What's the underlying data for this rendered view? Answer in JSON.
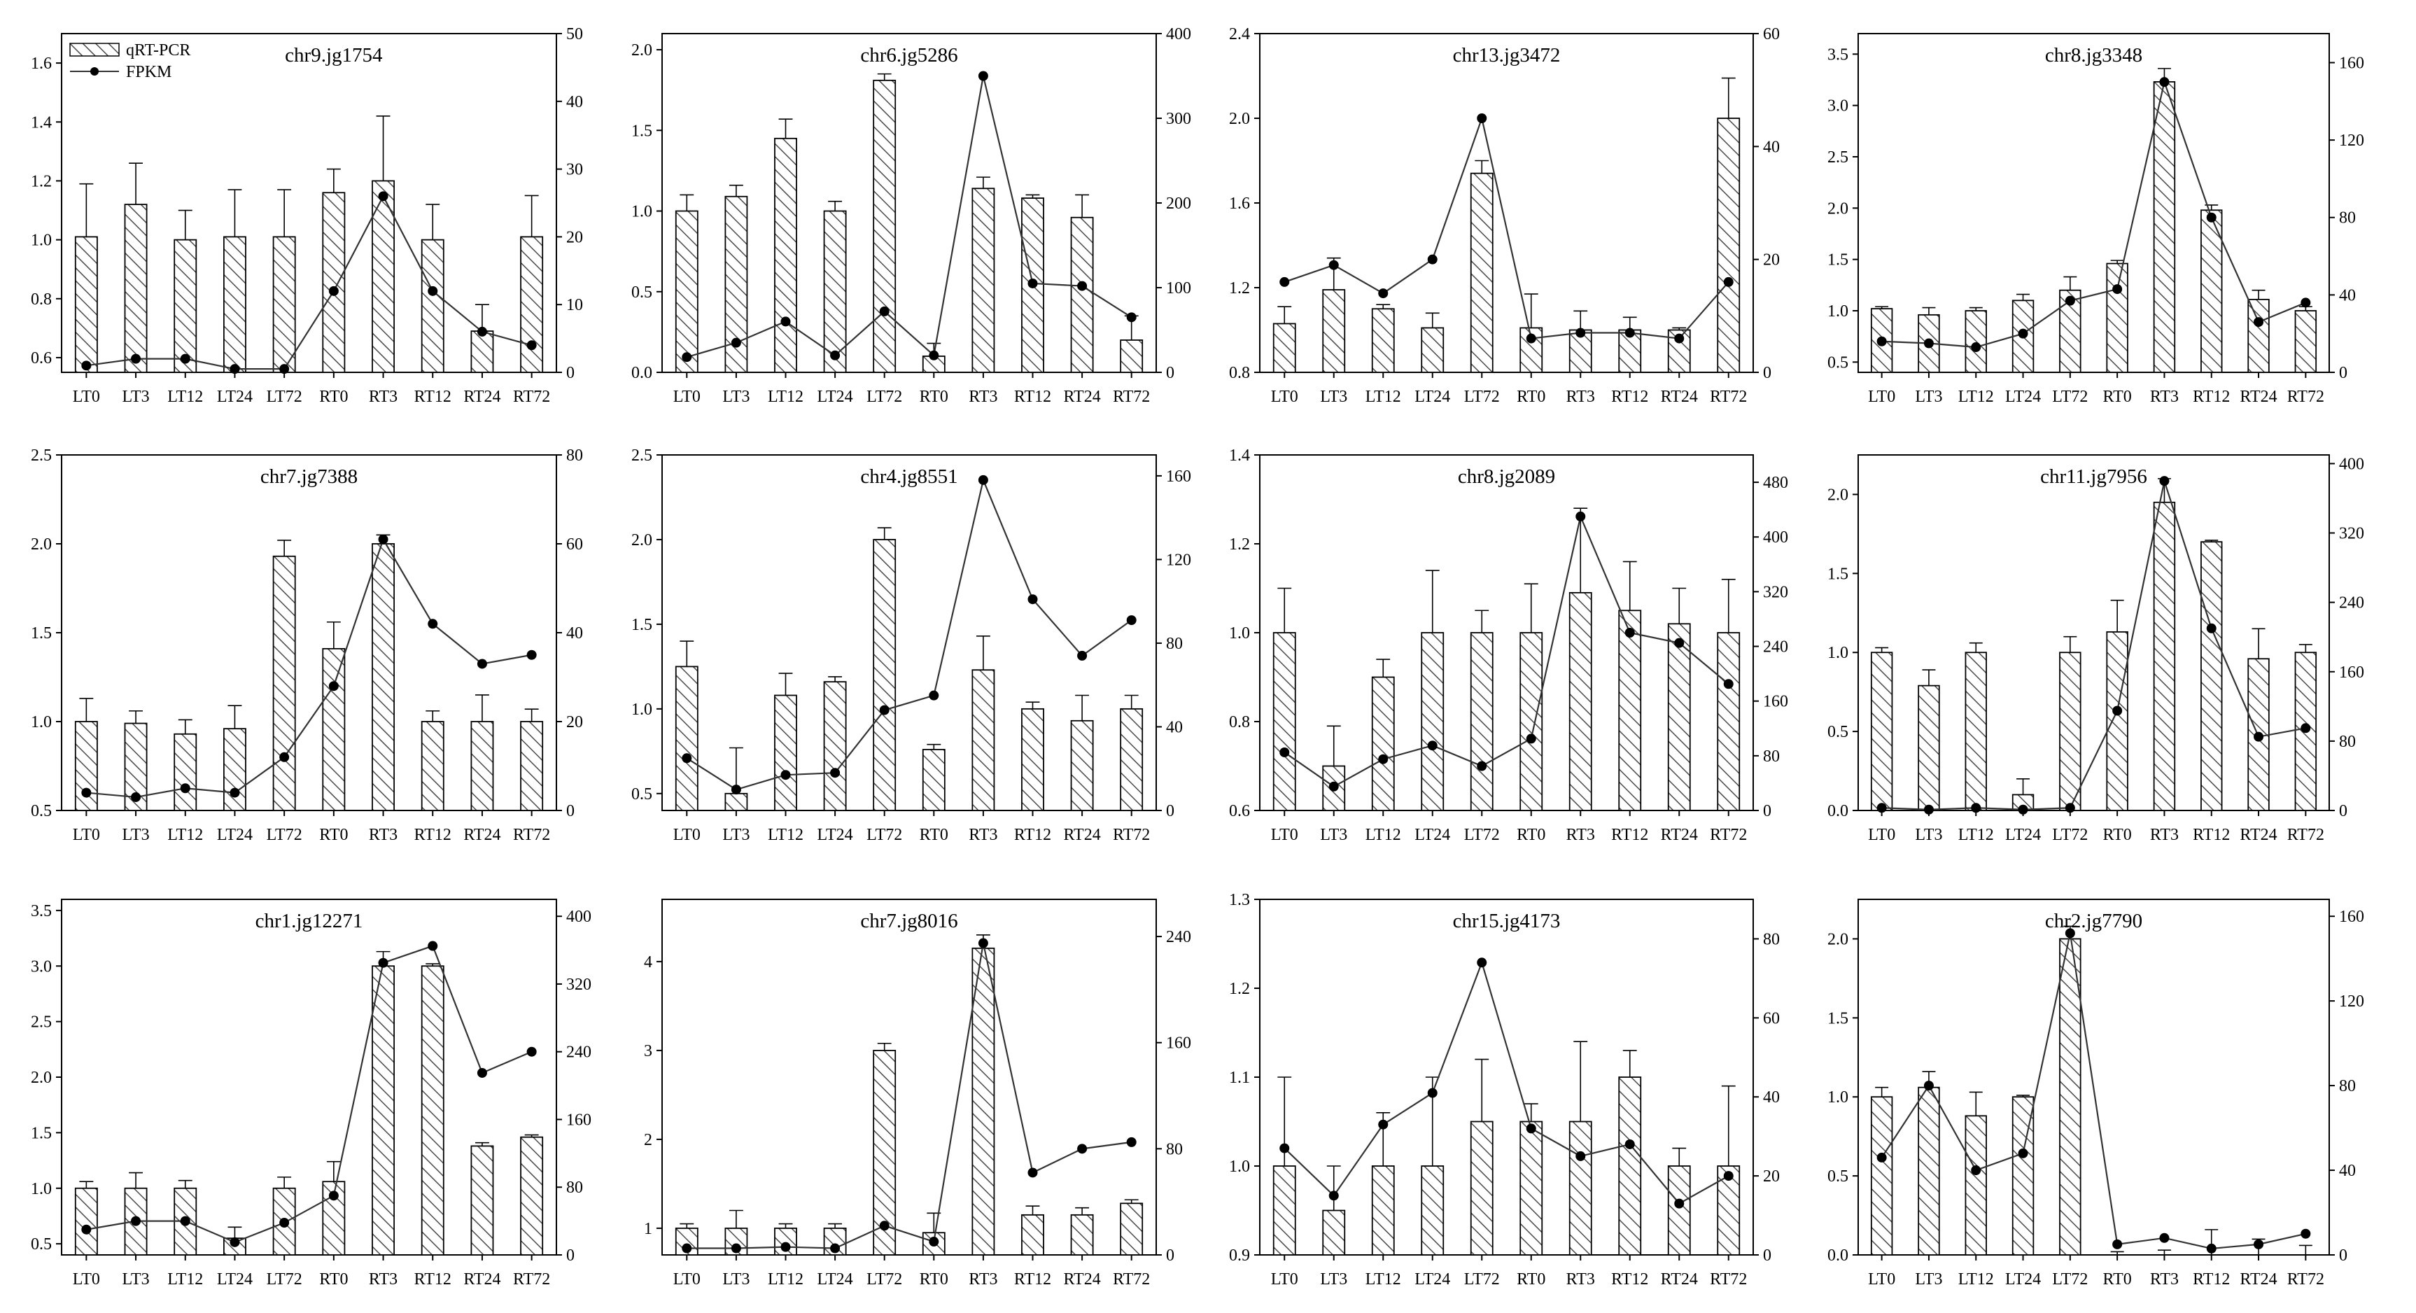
{
  "legend": {
    "bar_label": "qRT-PCR",
    "line_label": "FPKM"
  },
  "colors": {
    "ink": "#000000",
    "bar_fill": "#ffffff",
    "hatch": "#4a4a4a"
  },
  "chart_data": [
    {
      "type": "bar+line",
      "title": "chr9.jg1754",
      "categories": [
        "LT0",
        "LT3",
        "LT12",
        "LT24",
        "LT72",
        "RT0",
        "RT3",
        "RT12",
        "RT24",
        "RT72"
      ],
      "category_labels": [
        "LT0",
        "LT3",
        "LT12",
        "LT24",
        "LT72",
        "RT0",
        "RT3",
        "RT12",
        "RT24",
        "RT72"
      ],
      "bar_values": [
        1.01,
        1.12,
        1.0,
        1.01,
        1.01,
        1.16,
        1.2,
        1.0,
        0.69,
        1.01
      ],
      "bar_errors": [
        0.18,
        0.14,
        0.1,
        0.16,
        0.16,
        0.08,
        0.22,
        0.12,
        0.09,
        0.14
      ],
      "fpkm_values": [
        1,
        2,
        2,
        0.5,
        0.5,
        12,
        26,
        12,
        6,
        4
      ],
      "ylim_left": [
        0.55,
        1.7
      ],
      "yticks_left": [
        "0.6",
        "0.8",
        "1.0",
        "1.2",
        "1.4",
        "1.6"
      ],
      "ylim_right": [
        0,
        50
      ],
      "yticks_right": [
        "0",
        "10",
        "20",
        "30",
        "40",
        "50"
      ]
    },
    {
      "type": "bar+line",
      "title": "chr6.jg5286",
      "categories": [
        "LT0",
        "LT3",
        "LT12",
        "LT24",
        "LT72",
        "RT0",
        "RT3",
        "RT12",
        "RT24",
        "RT72"
      ],
      "category_labels": [
        "LT0",
        "LT3",
        "LT12",
        "LT24",
        "LT72",
        "RT0",
        "RT3",
        "RT12",
        "RT24",
        "RT72"
      ],
      "bar_values": [
        1.0,
        1.09,
        1.45,
        1.0,
        1.81,
        0.1,
        1.14,
        1.08,
        0.96,
        0.2
      ],
      "bar_errors": [
        0.1,
        0.07,
        0.12,
        0.06,
        0.04,
        0.08,
        0.07,
        0.02,
        0.14,
        0.15
      ],
      "fpkm_values": [
        18,
        35,
        60,
        20,
        72,
        20,
        350,
        105,
        102,
        65
      ],
      "ylim_left": [
        0,
        2.1
      ],
      "yticks_left": [
        "0.0",
        "0.5",
        "1.0",
        "1.5",
        "2.0"
      ],
      "ylim_right": [
        0,
        400
      ],
      "yticks_right": [
        "0",
        "100",
        "200",
        "300",
        "400"
      ]
    },
    {
      "type": "bar+line",
      "title": "chr13.jg3472",
      "categories": [
        "LT0",
        "LT3",
        "LT12",
        "LT24",
        "LT72",
        "RT0",
        "RT3",
        "RT12",
        "RT24",
        "RT72"
      ],
      "category_labels": [
        "LT0",
        "LT3",
        "LT12",
        "LT24",
        "LT72",
        "RT0",
        "RT3",
        "RT12",
        "RT24",
        "RT72"
      ],
      "bar_values": [
        1.03,
        1.19,
        1.1,
        1.01,
        1.74,
        1.01,
        1.0,
        1.0,
        1.0,
        2.0
      ],
      "bar_errors": [
        0.08,
        0.15,
        0.02,
        0.07,
        0.06,
        0.16,
        0.09,
        0.06,
        0.01,
        0.19
      ],
      "fpkm_values": [
        16,
        19,
        14,
        20,
        45,
        6,
        7,
        7,
        6,
        16
      ],
      "ylim_left": [
        0.8,
        2.4
      ],
      "yticks_left": [
        "0.8",
        "1.2",
        "1.6",
        "2.0",
        "2.4"
      ],
      "ylim_right": [
        0,
        60
      ],
      "yticks_right": [
        "0",
        "20",
        "40",
        "60"
      ]
    },
    {
      "type": "bar+line",
      "title": "chr8.jg3348",
      "categories": [
        "LT0",
        "LT3",
        "LT12",
        "LT24",
        "LT72",
        "RT0",
        "RT3",
        "RT12",
        "RT24",
        "RT72"
      ],
      "category_labels": [
        "LT0",
        "LT3",
        "LT12",
        "LT24",
        "LT72",
        "RT0",
        "RT3",
        "RT12",
        "RT24",
        "RT72"
      ],
      "bar_values": [
        1.02,
        0.96,
        1.0,
        1.1,
        1.2,
        1.46,
        3.23,
        1.98,
        1.11,
        1.0
      ],
      "bar_errors": [
        0.02,
        0.07,
        0.03,
        0.06,
        0.13,
        0.03,
        0.13,
        0.05,
        0.09,
        0.04
      ],
      "fpkm_values": [
        16,
        15,
        13,
        20,
        37,
        43,
        150,
        80,
        26,
        36
      ],
      "ylim_left": [
        0.4,
        3.7
      ],
      "yticks_left": [
        "0.5",
        "1.0",
        "1.5",
        "2.0",
        "2.5",
        "3.0",
        "3.5"
      ],
      "ylim_right": [
        0,
        175
      ],
      "yticks_right": [
        "0",
        "40",
        "80",
        "120",
        "160"
      ]
    },
    {
      "type": "bar+line",
      "title": "chr7.jg7388",
      "categories": [
        "LT0",
        "LT3",
        "LT12",
        "LT24",
        "LT72",
        "RT0",
        "RT3",
        "RT12",
        "RT24",
        "RT72"
      ],
      "category_labels": [
        "LT0",
        "LT3",
        "LT12",
        "LT24",
        "LT72",
        "RT0",
        "RT3",
        "RT12",
        "RT24",
        "RT72"
      ],
      "bar_values": [
        1.0,
        0.99,
        0.93,
        0.96,
        1.93,
        1.41,
        2.0,
        1.0,
        1.0,
        1.0
      ],
      "bar_errors": [
        0.13,
        0.07,
        0.08,
        0.13,
        0.09,
        0.15,
        0.05,
        0.06,
        0.15,
        0.07
      ],
      "fpkm_values": [
        4,
        3,
        5,
        4,
        12,
        28,
        61,
        42,
        33,
        35
      ],
      "ylim_left": [
        0.5,
        2.5
      ],
      "yticks_left": [
        "0.5",
        "1.0",
        "1.5",
        "2.0",
        "2.5"
      ],
      "ylim_right": [
        0,
        80
      ],
      "yticks_right": [
        "0",
        "20",
        "40",
        "60",
        "80"
      ]
    },
    {
      "type": "bar+line",
      "title": "chr4.jg8551",
      "categories": [
        "LT0",
        "LT3",
        "LT12",
        "LT24",
        "LT72",
        "RT0",
        "RT3",
        "RT12",
        "RT24",
        "RT72"
      ],
      "category_labels": [
        "LT0",
        "LT3",
        "LT12",
        "LT24",
        "LT72",
        "RT0",
        "RT3",
        "RT12",
        "RT24",
        "RT72"
      ],
      "bar_values": [
        1.25,
        0.5,
        1.08,
        1.16,
        2.0,
        0.76,
        1.23,
        1.0,
        0.93,
        1.0
      ],
      "bar_errors": [
        0.15,
        0.27,
        0.13,
        0.03,
        0.07,
        0.03,
        0.2,
        0.04,
        0.15,
        0.08
      ],
      "fpkm_values": [
        25,
        10,
        17,
        18,
        48,
        55,
        158,
        101,
        74,
        91
      ],
      "ylim_left": [
        0.4,
        2.5
      ],
      "yticks_left": [
        "0.5",
        "1.0",
        "1.5",
        "2.0",
        "2.5"
      ],
      "ylim_right": [
        0,
        170
      ],
      "yticks_right": [
        "0",
        "40",
        "80",
        "120",
        "160"
      ]
    },
    {
      "type": "bar+line",
      "title": "chr8.jg2089",
      "categories": [
        "LT0",
        "LT3",
        "LT12",
        "LT24",
        "LT72",
        "RT0",
        "RT3",
        "RT12",
        "RT24",
        "RT72"
      ],
      "category_labels": [
        "LT0",
        "LT3",
        "LT12",
        "LT24",
        "LT72",
        "RT0",
        "RT3",
        "RT12",
        "RT24",
        "RT72"
      ],
      "bar_values": [
        1.0,
        0.7,
        0.9,
        1.0,
        1.0,
        1.0,
        1.09,
        1.05,
        1.02,
        1.0
      ],
      "bar_errors": [
        0.1,
        0.09,
        0.04,
        0.14,
        0.05,
        0.11,
        0.19,
        0.11,
        0.08,
        0.12
      ],
      "fpkm_values": [
        85,
        35,
        75,
        95,
        65,
        105,
        430,
        260,
        245,
        185
      ],
      "ylim_left": [
        0.6,
        1.4
      ],
      "yticks_left": [
        "0.6",
        "0.8",
        "1.0",
        "1.2",
        "1.4"
      ],
      "ylim_right": [
        0,
        520
      ],
      "yticks_right": [
        "0",
        "80",
        "160",
        "240",
        "320",
        "400",
        "480"
      ]
    },
    {
      "type": "bar+line",
      "title": "chr11.jg7956",
      "categories": [
        "LT0",
        "LT3",
        "LT12",
        "LT24",
        "LT72",
        "RT0",
        "RT3",
        "RT12",
        "RT24",
        "RT72"
      ],
      "category_labels": [
        "LT0",
        "LT3",
        "LT12",
        "LT24",
        "LT72",
        "RT0",
        "RT3",
        "RT12",
        "RT24",
        "RT72"
      ],
      "bar_values": [
        1.0,
        0.79,
        1.0,
        0.1,
        1.0,
        1.13,
        1.95,
        1.7,
        0.96,
        1.0
      ],
      "bar_errors": [
        0.03,
        0.1,
        0.06,
        0.1,
        0.1,
        0.2,
        0.15,
        0.01,
        0.19,
        0.05
      ],
      "fpkm_values": [
        3,
        1,
        3,
        1,
        3,
        115,
        380,
        210,
        85,
        95
      ],
      "ylim_left": [
        0,
        2.25
      ],
      "yticks_left": [
        "0.0",
        "0.5",
        "1.0",
        "1.5",
        "2.0"
      ],
      "ylim_right": [
        0,
        410
      ],
      "yticks_right": [
        "0",
        "80",
        "160",
        "240",
        "320",
        "400"
      ]
    },
    {
      "type": "bar+line",
      "title": "chr1.jg12271",
      "categories": [
        "LT0",
        "LT3",
        "LT12",
        "LT24",
        "LT72",
        "RT0",
        "RT3",
        "RT12",
        "RT24",
        "RT72"
      ],
      "category_labels": [
        "LT0",
        "LT3",
        "LT12",
        "LT24",
        "LT72",
        "RT0",
        "RT3",
        "RT12",
        "RT24",
        "RT72"
      ],
      "bar_values": [
        1.0,
        1.0,
        1.0,
        0.55,
        1.0,
        1.06,
        3.0,
        3.0,
        1.38,
        1.46
      ],
      "bar_errors": [
        0.06,
        0.14,
        0.07,
        0.1,
        0.1,
        0.18,
        0.13,
        0.02,
        0.03,
        0.02
      ],
      "fpkm_values": [
        30,
        40,
        40,
        15,
        38,
        70,
        345,
        365,
        215,
        240
      ],
      "ylim_left": [
        0.4,
        3.6
      ],
      "yticks_left": [
        "0.5",
        "1.0",
        "1.5",
        "2.0",
        "2.5",
        "3.0",
        "3.5"
      ],
      "ylim_right": [
        0,
        420
      ],
      "yticks_right": [
        "0",
        "80",
        "160",
        "240",
        "320",
        "400"
      ]
    },
    {
      "type": "bar+line",
      "title": "chr7.jg8016",
      "categories": [
        "LT0",
        "LT3",
        "LT12",
        "LT24",
        "LT72",
        "RT0",
        "RT3",
        "RT12",
        "RT24",
        "RT72"
      ],
      "category_labels": [
        "LT0",
        "LT3",
        "LT12",
        "LT24",
        "LT72",
        "RT0",
        "RT3",
        "RT12",
        "RT24",
        "RT72"
      ],
      "bar_values": [
        1.0,
        1.0,
        1.0,
        1.0,
        3.0,
        0.95,
        4.15,
        1.15,
        1.15,
        1.28
      ],
      "bar_errors": [
        0.05,
        0.2,
        0.05,
        0.05,
        0.08,
        0.22,
        0.15,
        0.1,
        0.08,
        0.04
      ],
      "fpkm_values": [
        5,
        5,
        6,
        5,
        22,
        10,
        235,
        62,
        80,
        85
      ],
      "ylim_left": [
        0.7,
        4.7
      ],
      "yticks_left": [
        "1",
        "2",
        "3",
        "4"
      ],
      "ylim_right": [
        0,
        268
      ],
      "yticks_right": [
        "0",
        "80",
        "160",
        "240"
      ]
    },
    {
      "type": "bar+line",
      "title": "chr15.jg4173",
      "categories": [
        "LT0",
        "LT3",
        "LT12",
        "LT24",
        "LT72",
        "RT0",
        "RT3",
        "RT12",
        "RT24",
        "RT72"
      ],
      "category_labels": [
        "LT0",
        "LT3",
        "LT12",
        "LT24",
        "LT72",
        "RT0",
        "RT3",
        "RT12",
        "RT24",
        "RT72"
      ],
      "bar_values": [
        1.0,
        0.95,
        1.0,
        1.0,
        1.05,
        1.05,
        1.05,
        1.1,
        1.0,
        1.0
      ],
      "bar_errors": [
        0.1,
        0.05,
        0.06,
        0.1,
        0.07,
        0.02,
        0.09,
        0.03,
        0.02,
        0.09
      ],
      "fpkm_values": [
        27,
        15,
        33,
        41,
        74,
        32,
        25,
        28,
        13,
        20
      ],
      "ylim_left": [
        0.9,
        1.3
      ],
      "yticks_left": [
        "0.9",
        "1.0",
        "1.1",
        "1.2",
        "1.3"
      ],
      "ylim_right": [
        0,
        90
      ],
      "yticks_right": [
        "0",
        "20",
        "40",
        "60",
        "80"
      ]
    },
    {
      "type": "bar+line",
      "title": "chr2.jg7790",
      "categories": [
        "LT0",
        "LT3",
        "LT12",
        "LT24",
        "LT72",
        "RT0",
        "RT3",
        "RT12",
        "RT24",
        "RT72"
      ],
      "category_labels": [
        "LT0",
        "LT3",
        "LT12",
        "LT24",
        "LT72",
        "RT0",
        "RT3",
        "RT12",
        "RT24",
        "RT72"
      ],
      "bar_values": [
        1.0,
        1.06,
        0.88,
        1.0,
        2.0,
        0.0,
        0.0,
        0.0,
        0.0,
        0.0
      ],
      "bar_errors": [
        0.06,
        0.1,
        0.15,
        0.01,
        0.08,
        0.02,
        0.03,
        0.16,
        0.1,
        0.06
      ],
      "fpkm_values": [
        46,
        80,
        40,
        48,
        152,
        5,
        8,
        3,
        5,
        10
      ],
      "ylim_left": [
        0,
        2.25
      ],
      "yticks_left": [
        "0.0",
        "0.5",
        "1.0",
        "1.5",
        "2.0"
      ],
      "ylim_right": [
        0,
        168
      ],
      "yticks_right": [
        "0",
        "40",
        "80",
        "120",
        "160"
      ]
    }
  ]
}
